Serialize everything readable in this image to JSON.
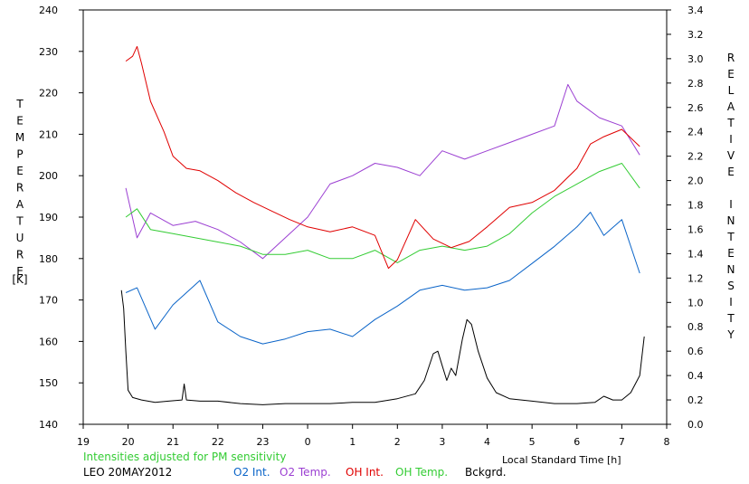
{
  "chart_data": {
    "type": "line",
    "note_line": "Intensities adjusted for PM sensitivity",
    "station_date": "LEO 20MAY2012",
    "xlabel": "Local Standard Time [h]",
    "ylabel_left": "TEMPERATURE",
    "ylabel_left_unit": "[K]",
    "ylabel_right": "RELATIVE INTENSITY",
    "xlim": [
      19,
      8
    ],
    "x_ticks": [
      19,
      20,
      21,
      22,
      23,
      0,
      1,
      2,
      3,
      4,
      5,
      6,
      7,
      8
    ],
    "ylim_left": [
      140,
      240
    ],
    "y_ticks_left": [
      140,
      150,
      160,
      170,
      180,
      190,
      200,
      210,
      220,
      230,
      240
    ],
    "ylim_right": [
      0.0,
      3.4
    ],
    "y_ticks_right": [
      "0.0",
      "0.2",
      "0.4",
      "0.6",
      "0.8",
      "1.0",
      "1.2",
      "1.4",
      "1.6",
      "1.8",
      "2.0",
      "2.2",
      "2.4",
      "2.6",
      "2.8",
      "3.0",
      "3.2",
      "3.4"
    ],
    "grid": false,
    "legend_position": "bottom",
    "series": [
      {
        "name": "O2 Int.",
        "axis": "right",
        "color": "#0a64c8",
        "x": [
          19.95,
          20.2,
          20.6,
          21.0,
          21.6,
          22.0,
          22.5,
          23.0,
          23.5,
          0.0,
          0.5,
          1.0,
          1.5,
          2.0,
          2.5,
          3.0,
          3.5,
          4.0,
          4.5,
          5.0,
          5.5,
          6.0,
          6.3,
          6.6,
          7.0,
          7.4
        ],
        "values": [
          1.08,
          1.12,
          0.78,
          0.98,
          1.18,
          0.84,
          0.72,
          0.66,
          0.7,
          0.76,
          0.78,
          0.72,
          0.86,
          0.97,
          1.1,
          1.14,
          1.1,
          1.12,
          1.18,
          1.32,
          1.46,
          1.62,
          1.74,
          1.55,
          1.68,
          1.24
        ]
      },
      {
        "name": "O2 Temp.",
        "axis": "left",
        "color": "#9b3fd2",
        "x": [
          19.95,
          20.2,
          20.5,
          21.0,
          21.5,
          22.0,
          22.5,
          23.0,
          23.5,
          0.0,
          0.5,
          1.0,
          1.5,
          2.0,
          2.5,
          3.0,
          3.5,
          4.0,
          4.5,
          5.0,
          5.5,
          5.8,
          6.0,
          6.5,
          7.0,
          7.4
        ],
        "values": [
          197,
          185,
          191,
          188,
          189,
          187,
          184,
          180,
          185,
          190,
          198,
          200,
          203,
          202,
          200,
          206,
          204,
          206,
          208,
          210,
          212,
          222,
          218,
          214,
          212,
          205
        ]
      },
      {
        "name": "OH Int.",
        "axis": "right",
        "color": "#e00000",
        "x": [
          19.95,
          20.1,
          20.2,
          20.3,
          20.5,
          20.8,
          21.0,
          21.3,
          21.6,
          22.0,
          22.4,
          22.8,
          23.2,
          23.6,
          0.0,
          0.5,
          1.0,
          1.5,
          1.8,
          2.0,
          2.4,
          2.8,
          3.2,
          3.6,
          4.0,
          4.5,
          5.0,
          5.5,
          6.0,
          6.3,
          6.6,
          7.0,
          7.4
        ],
        "values": [
          2.98,
          3.02,
          3.1,
          2.96,
          2.65,
          2.4,
          2.2,
          2.1,
          2.08,
          2.0,
          1.9,
          1.82,
          1.75,
          1.68,
          1.62,
          1.58,
          1.62,
          1.55,
          1.28,
          1.35,
          1.68,
          1.52,
          1.45,
          1.5,
          1.62,
          1.78,
          1.82,
          1.92,
          2.1,
          2.3,
          2.36,
          2.42,
          2.28
        ]
      },
      {
        "name": "OH Temp.",
        "axis": "left",
        "color": "#33cc33",
        "x": [
          19.95,
          20.2,
          20.5,
          21.0,
          21.5,
          22.0,
          22.5,
          23.0,
          23.5,
          0.0,
          0.5,
          1.0,
          1.5,
          2.0,
          2.5,
          3.0,
          3.5,
          4.0,
          4.5,
          5.0,
          5.5,
          6.0,
          6.5,
          7.0,
          7.4
        ],
        "values": [
          190,
          192,
          187,
          186,
          185,
          184,
          183,
          181,
          181,
          182,
          180,
          180,
          182,
          179,
          182,
          183,
          182,
          183,
          186,
          191,
          195,
          198,
          201,
          203,
          197
        ]
      },
      {
        "name": "Bckgrd.",
        "axis": "right",
        "color": "#000000",
        "x": [
          19.85,
          19.9,
          19.95,
          20.0,
          20.1,
          20.3,
          20.6,
          20.9,
          21.2,
          21.25,
          21.3,
          21.6,
          22.0,
          22.5,
          23.0,
          23.5,
          0.0,
          0.5,
          1.0,
          1.5,
          2.0,
          2.4,
          2.6,
          2.8,
          2.9,
          3.0,
          3.1,
          3.2,
          3.3,
          3.45,
          3.55,
          3.65,
          3.8,
          4.0,
          4.2,
          4.5,
          5.0,
          5.5,
          6.0,
          6.4,
          6.6,
          6.8,
          7.0,
          7.2,
          7.4,
          7.5
        ],
        "values": [
          1.1,
          0.95,
          0.6,
          0.28,
          0.22,
          0.2,
          0.18,
          0.19,
          0.2,
          0.33,
          0.2,
          0.19,
          0.19,
          0.17,
          0.16,
          0.17,
          0.17,
          0.17,
          0.18,
          0.18,
          0.21,
          0.25,
          0.36,
          0.58,
          0.6,
          0.48,
          0.36,
          0.46,
          0.4,
          0.7,
          0.86,
          0.82,
          0.6,
          0.38,
          0.26,
          0.21,
          0.19,
          0.17,
          0.17,
          0.18,
          0.23,
          0.2,
          0.2,
          0.26,
          0.4,
          0.72
        ]
      }
    ]
  }
}
